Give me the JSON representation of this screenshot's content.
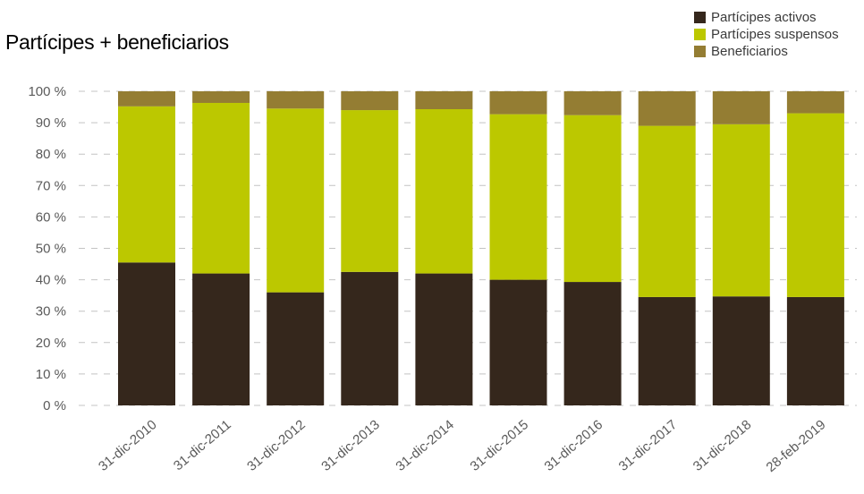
{
  "chart_data": {
    "type": "bar",
    "stacked": true,
    "title": "Partícipes + beneficiarios",
    "categories": [
      "31-dic-2010",
      "31-dic-2011",
      "31-dic-2012",
      "31-dic-2013",
      "31-dic-2014",
      "31-dic-2015",
      "31-dic-2016",
      "31-dic-2017",
      "31-dic-2018",
      "28-feb-2019"
    ],
    "series": [
      {
        "name": "Partícipes activos",
        "color": "#35271c",
        "values": [
          45.5,
          42,
          36,
          42.5,
          42,
          40,
          39.3,
          34.5,
          34.7,
          34.5
        ]
      },
      {
        "name": "Partícipes suspensos",
        "color": "#bcc800",
        "values": [
          49.7,
          54.3,
          58.5,
          51.5,
          52.3,
          52.7,
          53.1,
          54.5,
          54.8,
          58.5
        ]
      },
      {
        "name": "Beneficiarios",
        "color": "#947d33",
        "values": [
          4.8,
          3.7,
          5.5,
          6,
          5.7,
          7.3,
          7.6,
          11,
          10.5,
          7
        ]
      }
    ],
    "ylim": [
      0,
      100
    ],
    "yticks": [
      "0 %",
      "10 %",
      "20 %",
      "30 %",
      "40 %",
      "50 %",
      "60 %",
      "70 %",
      "80 %",
      "90 %",
      "100 %"
    ],
    "xlabel": "",
    "ylabel": "",
    "grid": true,
    "legend_position": "top-right"
  }
}
